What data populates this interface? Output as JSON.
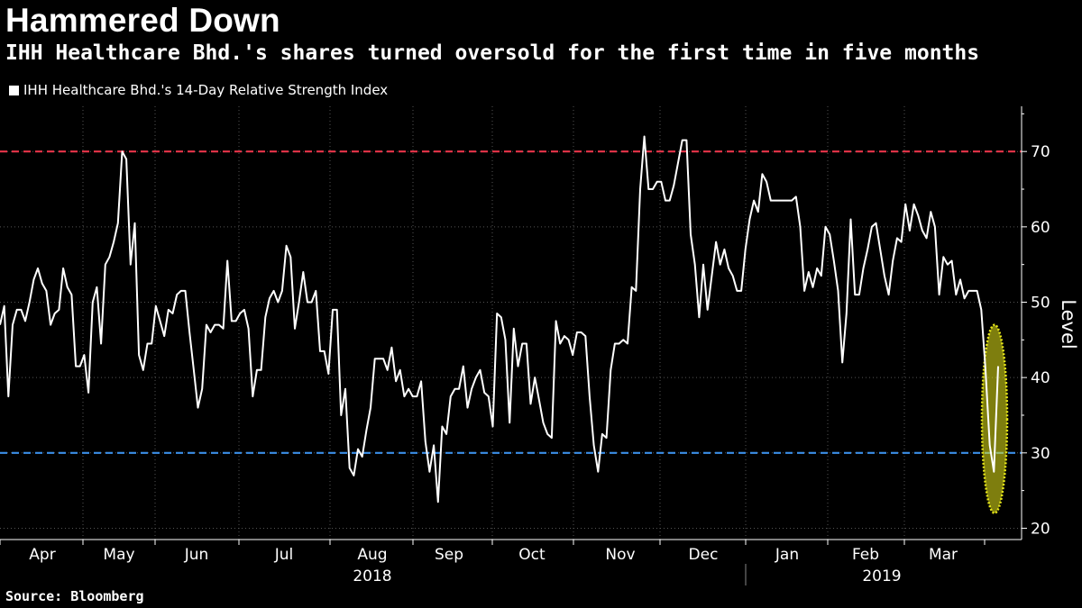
{
  "header": {
    "title": "Hammered Down",
    "subtitle": "IHH Healthcare Bhd.'s shares turned oversold for the first time in five months"
  },
  "footer": {
    "source": "Source: Bloomberg"
  },
  "colors": {
    "background": "#000000",
    "line": "#ffffff",
    "overbought": "#e8344a",
    "oversold": "#3b8fe8",
    "highlight": "#e6e619"
  },
  "chart_data": {
    "type": "line",
    "series": [
      {
        "name": "IHH Healthcare Bhd.'s 14-Day Relative Strength Index",
        "values": [
          47,
          49.5,
          37.5,
          47,
          49,
          49,
          47.5,
          50,
          53,
          54.5,
          52.5,
          51.5,
          47,
          48.5,
          49,
          54.5,
          52,
          51,
          41.5,
          41.5,
          43,
          38,
          50,
          52,
          44.5,
          55,
          56,
          58,
          60.5,
          70,
          69,
          55,
          60.5,
          43,
          41,
          44.5,
          44.5,
          49.5,
          47.5,
          45.5,
          49,
          48.5,
          51,
          51.5,
          51.5,
          46,
          41,
          36,
          38.5,
          47,
          46,
          47,
          47,
          46.5,
          55.5,
          47.5,
          47.5,
          48.5,
          49,
          46.5,
          37.5,
          41,
          41,
          48,
          50.5,
          51.5,
          50,
          51.5,
          57.5,
          56,
          46.5,
          50,
          54,
          50,
          50,
          51.5,
          43.5,
          43.5,
          40.5,
          49,
          49,
          35,
          38.5,
          28,
          27,
          30.5,
          29.5,
          33,
          36,
          42.5,
          42.5,
          42.5,
          41,
          44,
          39.5,
          41,
          37.5,
          38.5,
          37.5,
          37.5,
          39.5,
          31.5,
          27.5,
          31,
          23.5,
          33.5,
          32.5,
          37.5,
          38.5,
          38.5,
          41.5,
          36,
          38.5,
          40,
          41,
          38,
          37.5,
          33.5,
          48.5,
          48,
          45,
          34,
          46.5,
          41.5,
          44.5,
          44.5,
          36.5,
          40,
          37,
          34,
          32.5,
          32,
          47.5,
          44.5,
          45.5,
          45,
          43,
          46,
          46,
          45.5,
          37.5,
          31,
          27.5,
          32.5,
          32,
          41,
          44.5,
          44.5,
          45,
          44.5,
          52,
          51.5,
          65,
          72,
          65,
          65,
          66,
          66,
          63.5,
          63.5,
          65.5,
          68.5,
          71.5,
          71.5,
          59,
          55,
          48,
          55,
          49,
          53.5,
          58,
          55,
          57,
          54.5,
          53.5,
          51.5,
          51.5,
          57,
          61,
          63.5,
          62,
          67,
          66,
          63.5,
          63.5,
          63.5,
          63.5,
          63.5,
          63.5,
          64,
          60,
          51.5,
          54,
          52,
          54.5,
          53.5,
          60,
          59,
          55.5,
          51.5,
          42,
          48.5,
          61,
          51,
          51,
          54.5,
          57,
          60,
          60.5,
          57,
          53.5,
          51,
          55.5,
          58.5,
          58,
          63,
          59.5,
          63,
          61.5,
          59.5,
          58.5,
          62,
          60,
          51,
          56,
          55,
          55.5,
          51,
          53,
          50.5,
          51.5,
          51.5,
          51.5,
          49,
          41,
          31,
          27.5,
          41.5
        ]
      }
    ],
    "x_labels": [
      "Apr",
      "May",
      "Jun",
      "Jul",
      "Aug",
      "Sep",
      "Oct",
      "Nov",
      "Dec",
      "Jan",
      "Feb",
      "Mar"
    ],
    "year_labels": [
      "2018",
      "2019"
    ],
    "x_range": [
      "2018-03-26",
      "2019-03-29"
    ],
    "ylabel": "Level",
    "y_ticks": [
      20,
      30,
      40,
      50,
      60,
      70
    ],
    "ylim": [
      18.5,
      76
    ],
    "reference_lines": [
      {
        "value": 70,
        "style": "dashed",
        "color": "#e8344a"
      },
      {
        "value": 30,
        "style": "dashed",
        "color": "#3b8fe8"
      }
    ],
    "highlight": {
      "shape": "ellipse",
      "y_range": [
        22,
        47
      ],
      "at": "end",
      "color": "#e6e619"
    },
    "grid": true,
    "legend_position": "top-left"
  }
}
